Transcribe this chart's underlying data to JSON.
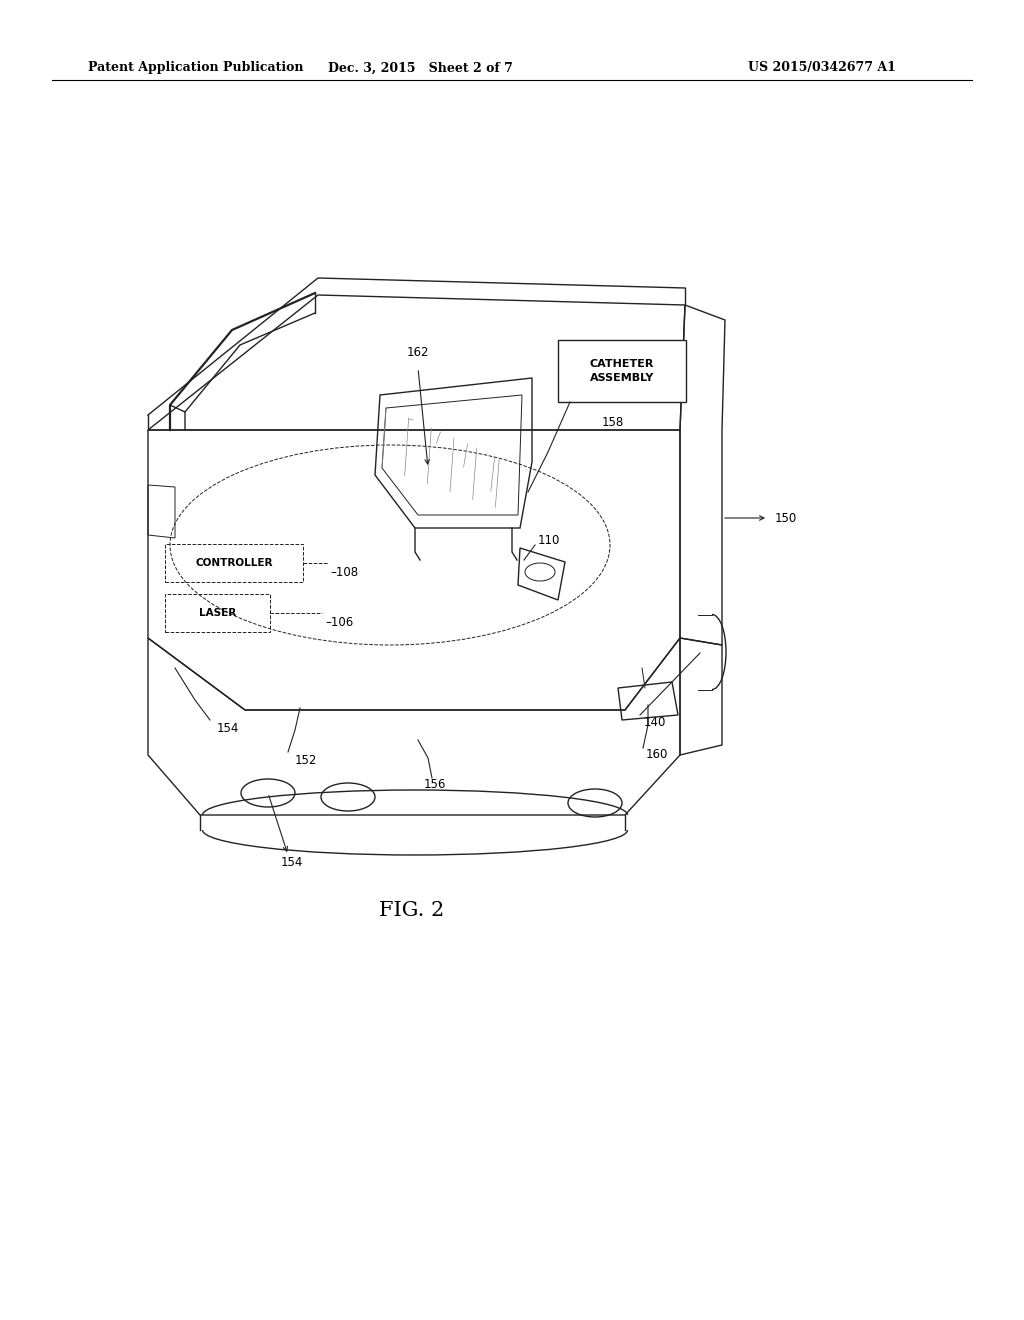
{
  "bg_color": "#ffffff",
  "header_left": "Patent Application Publication",
  "header_center": "Dec. 3, 2015   Sheet 2 of 7",
  "header_right": "US 2015/0342677 A1",
  "fig_label": "FIG. 2",
  "dark": "#222222",
  "gray": "#888888",
  "ref_fs": 8.5,
  "lw": 1.0,
  "lw_thin": 0.7
}
